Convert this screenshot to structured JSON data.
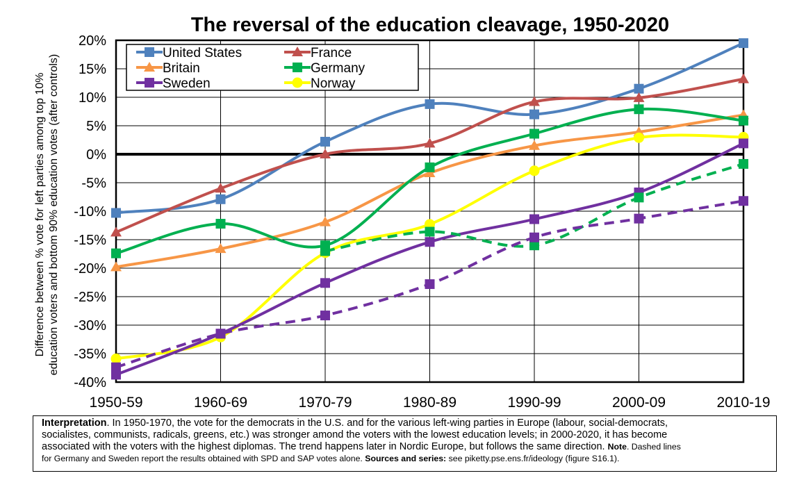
{
  "chart_data": {
    "type": "line",
    "title": "The reversal of the education cleavage, 1950-2020",
    "ylabel_lines": [
      "Difference between % vote for left parties among top 10%",
      "education voters and bottom 90% education votes (after controls)"
    ],
    "categories": [
      "1950-59",
      "1960-69",
      "1970-79",
      "1980-89",
      "1990-99",
      "2000-09",
      "2010-19"
    ],
    "yticks": [
      20,
      15,
      10,
      5,
      0,
      -5,
      -10,
      -15,
      -20,
      -25,
      -30,
      -35,
      -40
    ],
    "ytick_labels": [
      "20%",
      "15%",
      "10%",
      "5%",
      "0%",
      "-5%",
      "-10%",
      "-15%",
      "-20%",
      "-25%",
      "-30%",
      "-35%",
      "-40%"
    ],
    "ylim": [
      -40,
      20
    ],
    "grid": true,
    "legend_position": "top-left",
    "series": [
      {
        "name": "United States",
        "color": "#4F81BD",
        "marker": "square",
        "dashed": false,
        "values": [
          -10.3,
          -7.9,
          2.2,
          8.8,
          7.0,
          11.5,
          19.5
        ]
      },
      {
        "name": "France",
        "color": "#C0504D",
        "marker": "triangle",
        "dashed": false,
        "values": [
          -13.7,
          -6.0,
          0.0,
          1.9,
          9.2,
          9.9,
          13.2
        ]
      },
      {
        "name": "Britain",
        "color": "#F79646",
        "marker": "triangle",
        "dashed": false,
        "values": [
          -19.8,
          -16.6,
          -11.9,
          -3.3,
          1.5,
          3.9,
          6.9
        ]
      },
      {
        "name": "Germany",
        "color": "#00B050",
        "marker": "square",
        "dashed": false,
        "values": [
          -17.4,
          -12.2,
          -16.0,
          -2.3,
          3.6,
          7.9,
          5.9
        ]
      },
      {
        "name": "Sweden",
        "color": "#7030A0",
        "marker": "square",
        "dashed": false,
        "values": [
          -38.7,
          -31.5,
          -22.6,
          -15.4,
          -11.4,
          -6.7,
          1.9
        ]
      },
      {
        "name": "Norway",
        "color": "#FFFF00",
        "marker": "circle",
        "dashed": false,
        "values": [
          -35.9,
          -32.1,
          -17.3,
          -12.3,
          -2.9,
          2.9,
          3.0
        ]
      },
      {
        "color": "#00B050",
        "marker": "square",
        "dashed": true,
        "values": [
          null,
          null,
          -17.0,
          -13.6,
          -16.0,
          -7.6,
          -1.7
        ]
      },
      {
        "color": "#7030A0",
        "marker": "square",
        "dashed": true,
        "values": [
          -37.4,
          -31.5,
          -28.3,
          -22.8,
          -14.6,
          -11.3,
          -8.2
        ]
      }
    ]
  },
  "interpretation": {
    "label": "Interpretation",
    "line1": ". In 1950-1970, the vote for the democrats in the U.S. and for the various left-wing parties in Europe (labour, social-democrats,",
    "line2": "socialistes, communists, radicals, greens, etc.) was stronger amond the voters with the lowest education levels; in 2000-2020, it has become",
    "line3": "associated with the voters with the highest diplomas. The trend happens later in Nordic Europe, but follows the same direction.",
    "note_label": "Note",
    "note_text": ". Dashed lines",
    "line4": "for Germany and Sweden report the results obtained with SPD and SAP votes alone.",
    "sources_label": "Sources and series:",
    "sources_text": "see piketty.pse.ens.fr/ideology (figure S16.1)."
  }
}
